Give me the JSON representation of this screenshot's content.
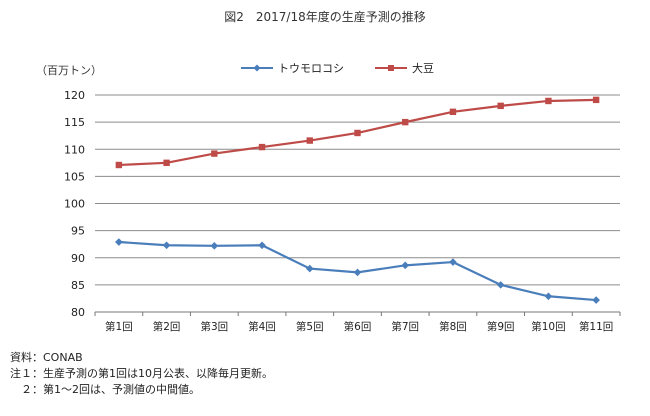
{
  "title": "図2　2017/18年度の生産予測の推移",
  "unit_label": "（百万トン）",
  "notes": [
    "資料：CONAB",
    "注１：生産予測の第1回は10月公表、以降毎月更新。",
    "　２：第1～2回は、予測値の中間値。"
  ],
  "chart_data": {
    "type": "line",
    "title": "図2　2017/18年度の生産予測の推移",
    "ylabel": "（百万トン）",
    "xlabel": "",
    "categories": [
      "第1回",
      "第2回",
      "第3回",
      "第4回",
      "第5回",
      "第6回",
      "第7回",
      "第8回",
      "第9回",
      "第10回",
      "第11回"
    ],
    "ylim": [
      80,
      120
    ],
    "yticks": [
      80,
      85,
      90,
      95,
      100,
      105,
      110,
      115,
      120
    ],
    "grid": true,
    "legend_position": "top",
    "series": [
      {
        "name": "トウモロコシ",
        "color": "#4a7ebb",
        "marker": "diamond",
        "values": [
          92.9,
          92.3,
          92.2,
          92.3,
          88.0,
          87.3,
          88.6,
          89.2,
          85.0,
          82.9,
          82.2
        ]
      },
      {
        "name": "大豆",
        "color": "#be4b48",
        "marker": "square",
        "values": [
          107.1,
          107.5,
          109.2,
          110.4,
          111.6,
          113.0,
          115.0,
          116.9,
          118.0,
          118.9,
          119.1
        ]
      }
    ]
  }
}
